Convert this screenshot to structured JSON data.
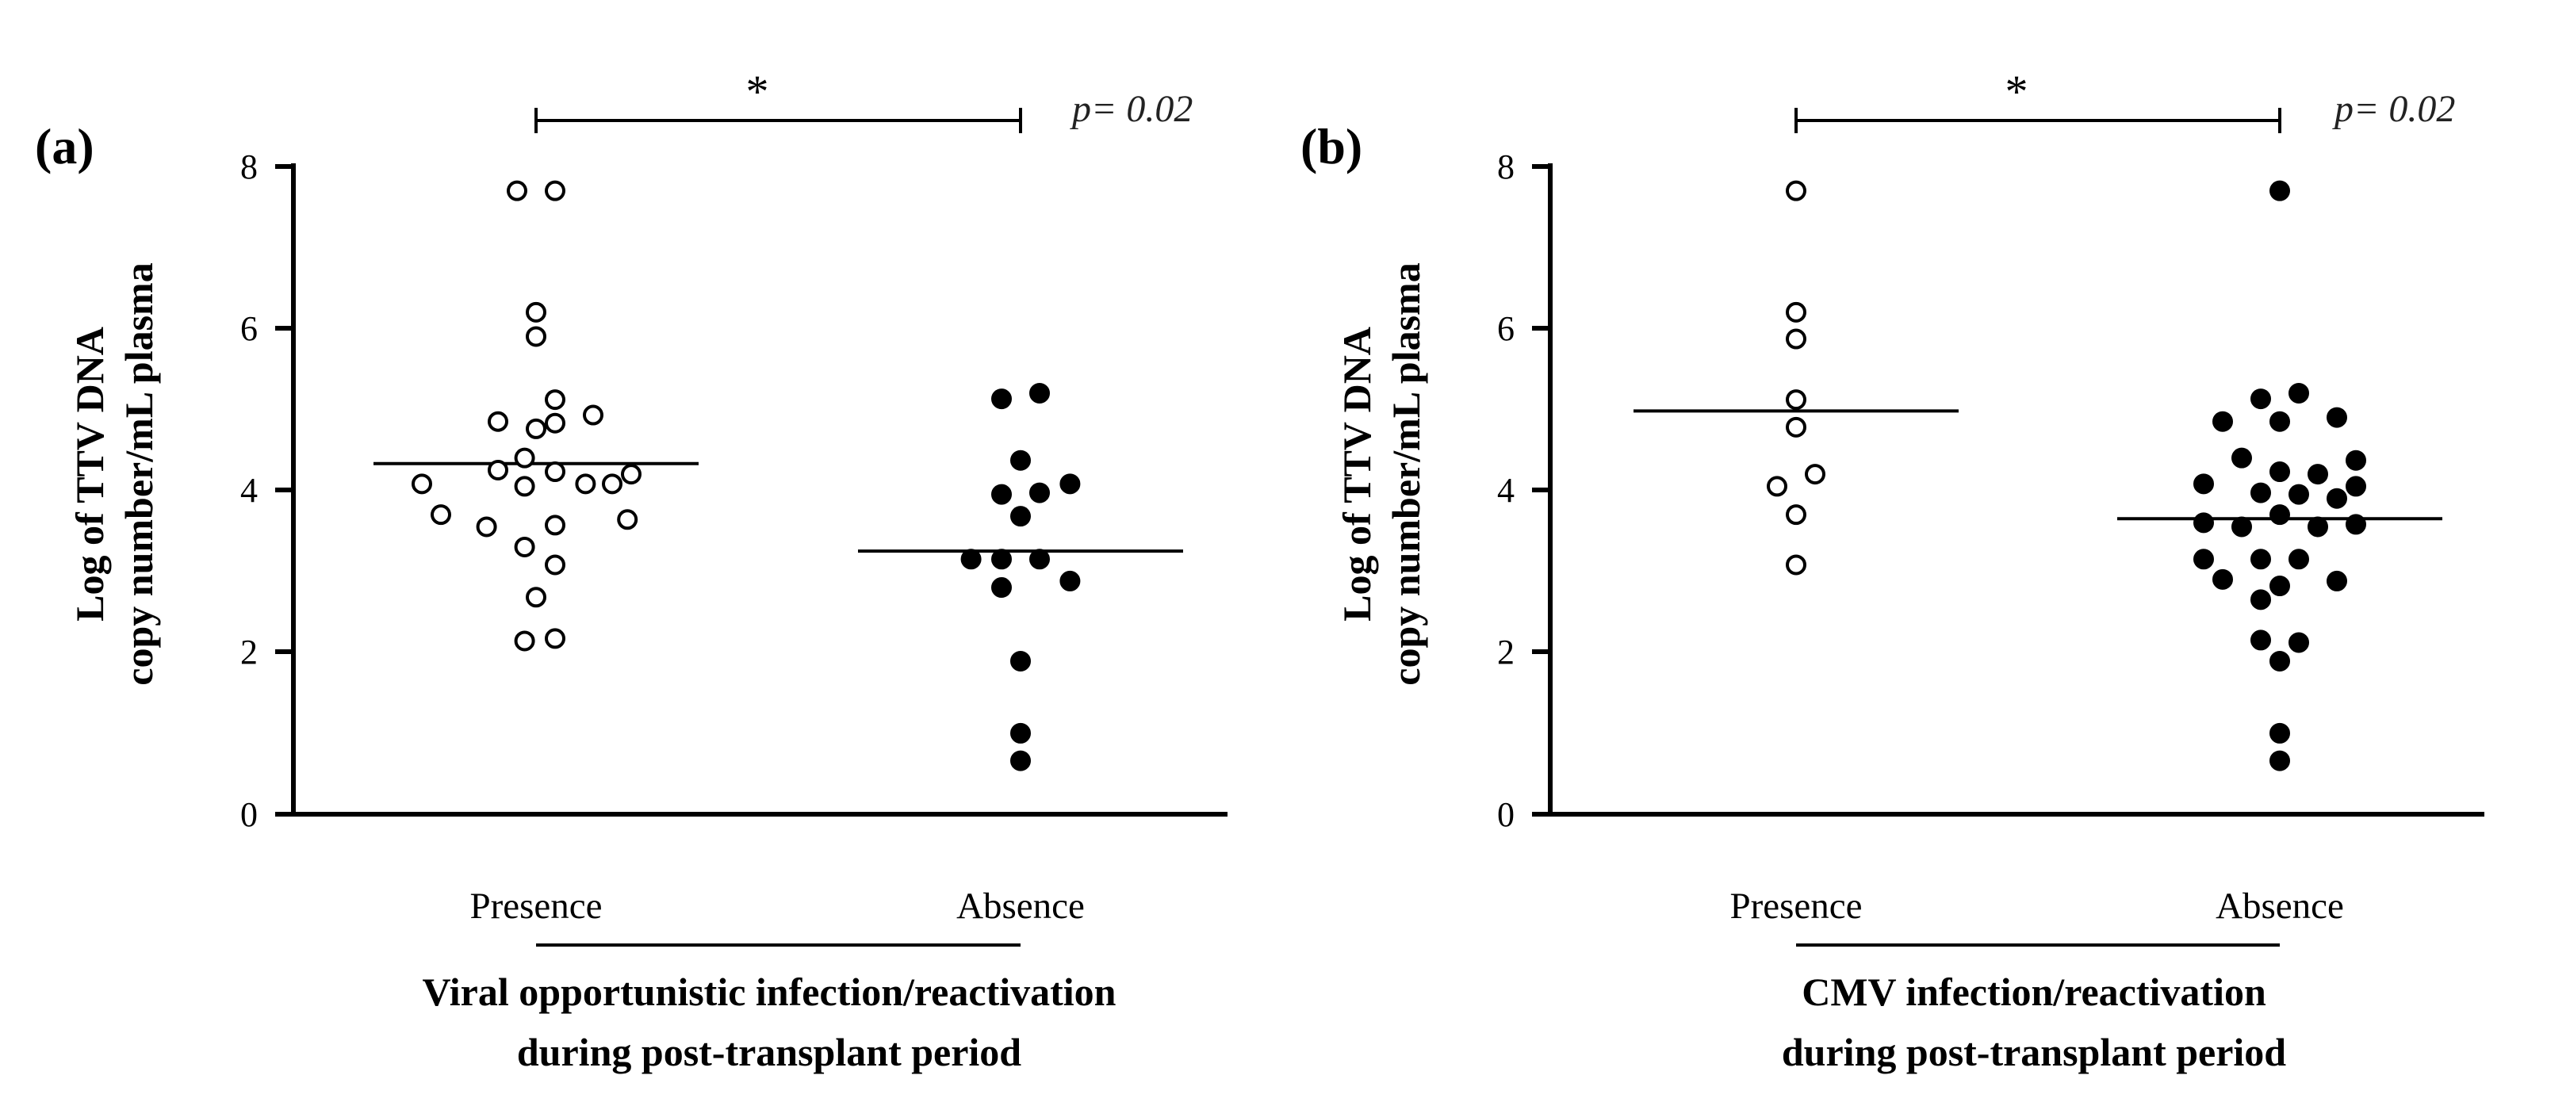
{
  "chart_data": [
    {
      "type": "scatter",
      "panel_label": "(a)",
      "ylabel": [
        "Log of TTV DNA",
        "copy number/mL plasma"
      ],
      "xlabel": [
        "Viral opportunistic infection/reactivation",
        "during post-transplant period"
      ],
      "categories": [
        "Presence",
        "Absence"
      ],
      "ylim": [
        0,
        8
      ],
      "y_ticks": [
        "0",
        "2",
        "4",
        "6",
        "8"
      ],
      "significance": {
        "star": "*",
        "p_value": "p= 0.02"
      },
      "series": [
        {
          "name": "Presence",
          "marker": "open",
          "median": 4.33,
          "points": [
            {
              "y": 7.7,
              "offset": -0.5
            },
            {
              "y": 7.7,
              "offset": 0.5
            },
            {
              "y": 6.2,
              "offset": 0.0
            },
            {
              "y": 5.9,
              "offset": 0.0
            },
            {
              "y": 5.12,
              "offset": 0.5
            },
            {
              "y": 4.93,
              "offset": 1.5
            },
            {
              "y": 4.85,
              "offset": -1.0
            },
            {
              "y": 4.83,
              "offset": 0.5
            },
            {
              "y": 4.76,
              "offset": 0.0
            },
            {
              "y": 4.4,
              "offset": -0.3
            },
            {
              "y": 4.25,
              "offset": -1.0
            },
            {
              "y": 4.23,
              "offset": 0.5
            },
            {
              "y": 4.2,
              "offset": 2.5
            },
            {
              "y": 4.08,
              "offset": -3.0
            },
            {
              "y": 4.05,
              "offset": -0.3
            },
            {
              "y": 4.08,
              "offset": 1.3
            },
            {
              "y": 4.08,
              "offset": 2.0
            },
            {
              "y": 3.7,
              "offset": -2.5
            },
            {
              "y": 3.64,
              "offset": 2.4
            },
            {
              "y": 3.55,
              "offset": -1.3
            },
            {
              "y": 3.57,
              "offset": 0.5
            },
            {
              "y": 3.3,
              "offset": -0.3
            },
            {
              "y": 3.08,
              "offset": 0.5
            },
            {
              "y": 2.68,
              "offset": 0.0
            },
            {
              "y": 2.14,
              "offset": -0.3
            },
            {
              "y": 2.17,
              "offset": 0.5
            }
          ]
        },
        {
          "name": "Absence",
          "marker": "filled",
          "median": 3.25,
          "points": [
            {
              "y": 5.13,
              "offset": -0.5
            },
            {
              "y": 5.2,
              "offset": 0.5
            },
            {
              "y": 4.37,
              "offset": 0.0
            },
            {
              "y": 4.08,
              "offset": 1.3
            },
            {
              "y": 3.95,
              "offset": -0.5
            },
            {
              "y": 3.97,
              "offset": 0.5
            },
            {
              "y": 3.68,
              "offset": 0.0
            },
            {
              "y": 3.15,
              "offset": -1.3
            },
            {
              "y": 3.15,
              "offset": -0.5
            },
            {
              "y": 3.15,
              "offset": 0.5
            },
            {
              "y": 2.88,
              "offset": 1.3
            },
            {
              "y": 2.8,
              "offset": -0.5
            },
            {
              "y": 1.89,
              "offset": 0.0
            },
            {
              "y": 1.0,
              "offset": 0.0
            },
            {
              "y": 0.66,
              "offset": 0.0
            }
          ]
        }
      ]
    },
    {
      "type": "scatter",
      "panel_label": "(b)",
      "ylabel": [
        "Log of TTV DNA",
        "copy number/mL plasma"
      ],
      "xlabel": [
        "CMV infection/reactivation",
        "during post-transplant period"
      ],
      "categories": [
        "Presence",
        "Absence"
      ],
      "ylim": [
        0,
        8
      ],
      "y_ticks": [
        "0",
        "2",
        "4",
        "6",
        "8"
      ],
      "significance": {
        "star": "*",
        "p_value": "p= 0.02"
      },
      "series": [
        {
          "name": "Presence",
          "marker": "open",
          "median": 4.98,
          "points": [
            {
              "y": 7.7,
              "offset": 0.0
            },
            {
              "y": 6.2,
              "offset": 0.0
            },
            {
              "y": 5.87,
              "offset": 0.0
            },
            {
              "y": 5.12,
              "offset": 0.0
            },
            {
              "y": 4.78,
              "offset": 0.0
            },
            {
              "y": 4.2,
              "offset": 0.5
            },
            {
              "y": 4.05,
              "offset": -0.5
            },
            {
              "y": 3.7,
              "offset": 0.0
            },
            {
              "y": 3.08,
              "offset": 0.0
            }
          ]
        },
        {
          "name": "Absence",
          "marker": "filled",
          "median": 3.65,
          "points": [
            {
              "y": 7.7,
              "offset": 0.0
            },
            {
              "y": 5.13,
              "offset": -0.5
            },
            {
              "y": 5.2,
              "offset": 0.5
            },
            {
              "y": 4.9,
              "offset": 1.5
            },
            {
              "y": 4.85,
              "offset": -1.5
            },
            {
              "y": 4.85,
              "offset": 0.0
            },
            {
              "y": 4.4,
              "offset": -1.0
            },
            {
              "y": 4.37,
              "offset": 2.0
            },
            {
              "y": 4.23,
              "offset": 0.0
            },
            {
              "y": 4.2,
              "offset": 1.0
            },
            {
              "y": 4.08,
              "offset": -2.0
            },
            {
              "y": 4.05,
              "offset": 2.0
            },
            {
              "y": 3.97,
              "offset": -0.5
            },
            {
              "y": 3.95,
              "offset": 0.5
            },
            {
              "y": 3.9,
              "offset": 1.5
            },
            {
              "y": 3.7,
              "offset": 0.0
            },
            {
              "y": 3.6,
              "offset": -2.0
            },
            {
              "y": 3.58,
              "offset": 2.0
            },
            {
              "y": 3.55,
              "offset": -1.0
            },
            {
              "y": 3.55,
              "offset": 1.0
            },
            {
              "y": 3.15,
              "offset": -2.0
            },
            {
              "y": 3.15,
              "offset": -0.5
            },
            {
              "y": 3.15,
              "offset": 0.5
            },
            {
              "y": 2.9,
              "offset": -1.5
            },
            {
              "y": 2.88,
              "offset": 1.5
            },
            {
              "y": 2.82,
              "offset": 0.0
            },
            {
              "y": 2.65,
              "offset": -0.5
            },
            {
              "y": 2.15,
              "offset": -0.5
            },
            {
              "y": 2.12,
              "offset": 0.5
            },
            {
              "y": 1.89,
              "offset": 0.0
            },
            {
              "y": 1.0,
              "offset": 0.0
            },
            {
              "y": 0.66,
              "offset": 0.0
            }
          ]
        }
      ]
    }
  ]
}
